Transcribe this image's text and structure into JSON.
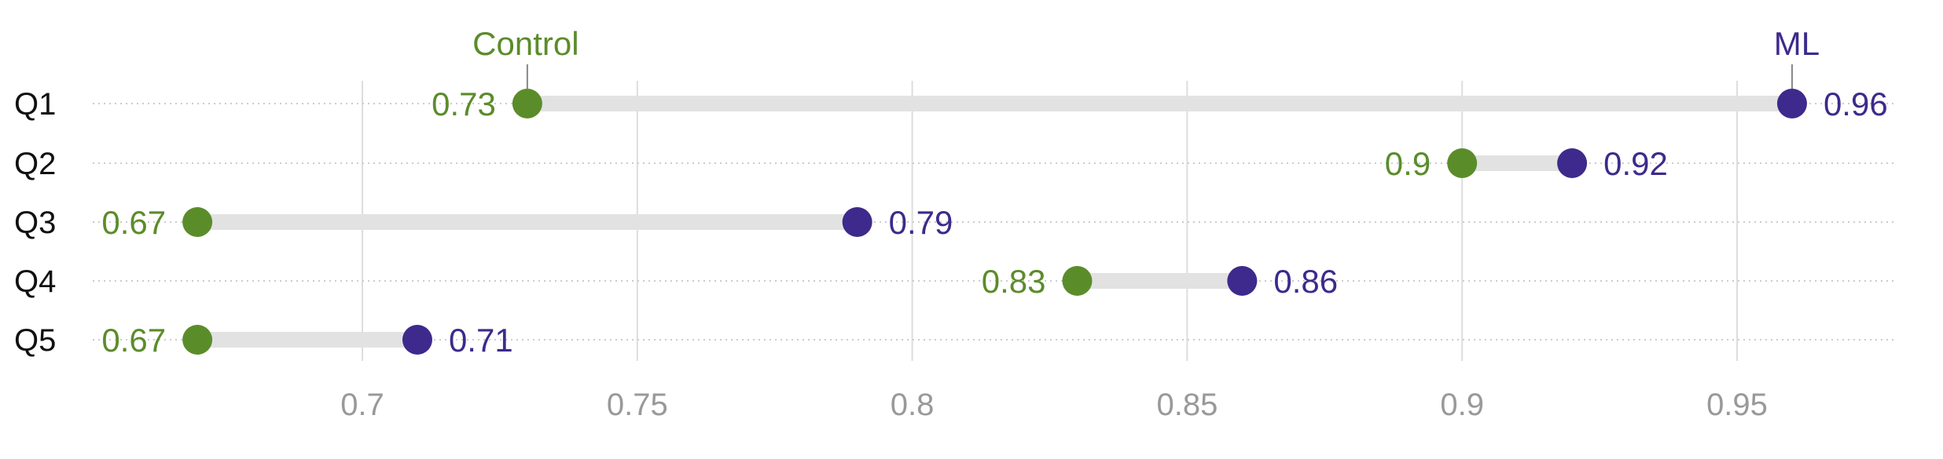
{
  "chart_data": {
    "type": "dumbbell",
    "categories": [
      "Q1",
      "Q2",
      "Q3",
      "Q4",
      "Q5"
    ],
    "series": [
      {
        "name": "Control",
        "values": [
          0.73,
          0.9,
          0.67,
          0.83,
          0.67
        ],
        "color": "#5b8c2a"
      },
      {
        "name": "ML",
        "values": [
          0.96,
          0.92,
          0.79,
          0.86,
          0.71
        ],
        "color": "#3d2a8c"
      }
    ],
    "value_labels": {
      "Control": [
        "0.73",
        "0.9",
        "0.67",
        "0.83",
        "0.67"
      ],
      "ML": [
        "0.96",
        "0.92",
        "0.79",
        "0.86",
        "0.71"
      ]
    },
    "x_ticks": [
      0.7,
      0.75,
      0.8,
      0.85,
      0.9,
      0.95
    ],
    "x_tick_labels": [
      "0.7",
      "0.75",
      "0.8",
      "0.85",
      "0.9",
      "0.95"
    ],
    "xlim": [
      0.65,
      0.98
    ],
    "grid": "vertical at ticks, dotted horizontal row guides",
    "legend": "direct labels above first row",
    "connector_color": "#e2e2e2",
    "gridline_color": "#dddddd"
  }
}
